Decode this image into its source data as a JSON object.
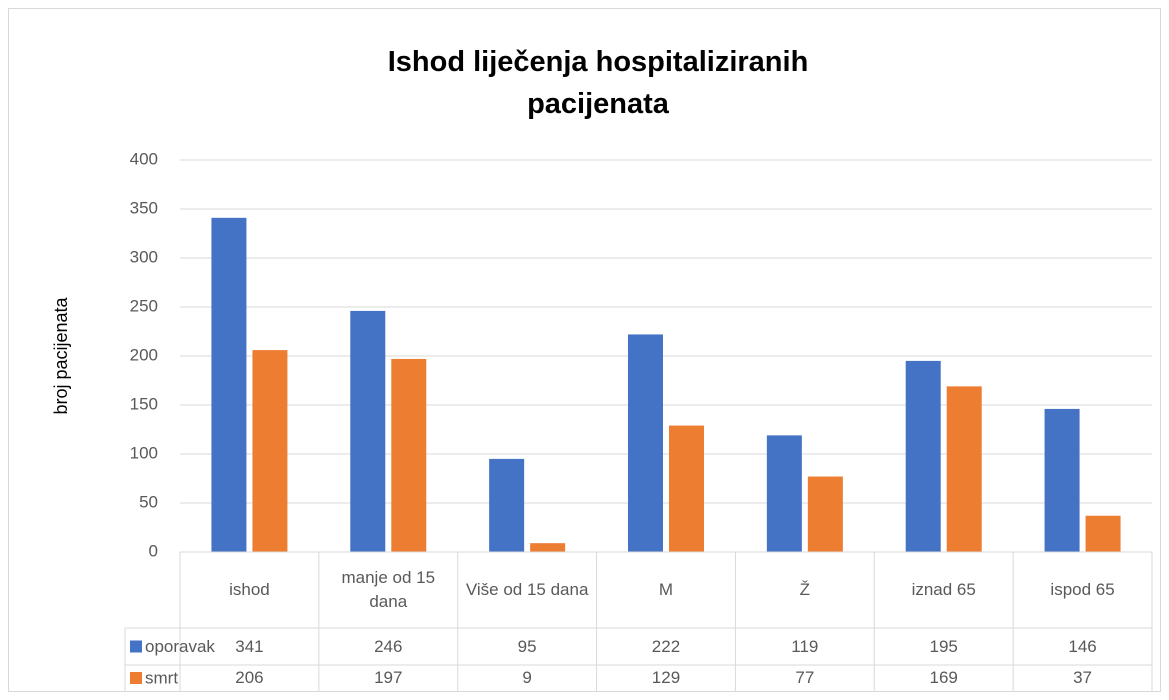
{
  "chart_data": {
    "type": "bar",
    "title": "Ishod liječenja hospitaliziranih pacijenata",
    "y_label": "broj pacijenata",
    "categories": [
      "ishod",
      "manje od 15 dana",
      "Više od 15 dana",
      "M",
      "Ž",
      "iznad 65",
      "ispod 65"
    ],
    "series": [
      {
        "name": "oporavak",
        "color": "#4472c4",
        "values": [
          341,
          246,
          95,
          222,
          119,
          195,
          146
        ]
      },
      {
        "name": "smrt",
        "color": "#ed7d31",
        "values": [
          206,
          197,
          9,
          129,
          77,
          169,
          37
        ]
      }
    ],
    "ylim": [
      0,
      400
    ],
    "yticks": [
      0,
      50,
      100,
      150,
      200,
      250,
      300,
      350,
      400
    ],
    "grid": true,
    "data_table": true
  }
}
